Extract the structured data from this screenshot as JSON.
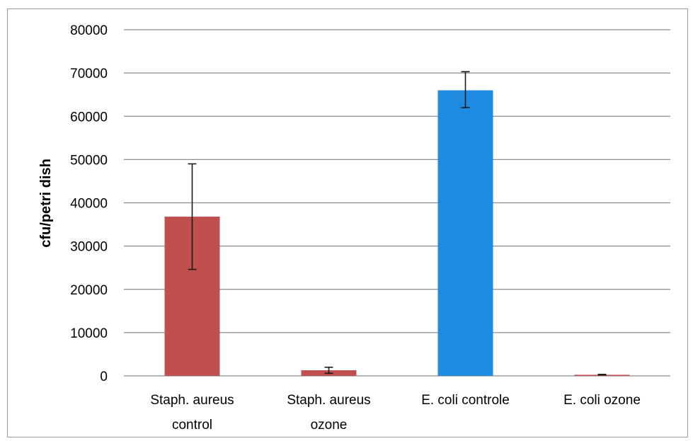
{
  "chart_data": {
    "type": "bar",
    "title": "",
    "xlabel": "",
    "ylabel": "cfu/petri dish",
    "ylim": [
      0,
      80000
    ],
    "yticks": [
      0,
      10000,
      20000,
      30000,
      40000,
      50000,
      60000,
      70000,
      80000
    ],
    "grid": true,
    "legend": "none",
    "categories": [
      [
        "Staph. aureus",
        "control"
      ],
      [
        "Staph. aureus",
        "ozone"
      ],
      [
        "E. coli controle"
      ],
      [
        "E. coli ozone"
      ]
    ],
    "values": [
      36800,
      1300,
      66000,
      250
    ],
    "errors": [
      [
        24600,
        49000
      ],
      [
        600,
        2000
      ],
      [
        62000,
        70300
      ],
      [
        200,
        350
      ]
    ],
    "colors": [
      "#c0504d",
      "#c0504d",
      "#1f8be0",
      "#c0504d"
    ]
  }
}
